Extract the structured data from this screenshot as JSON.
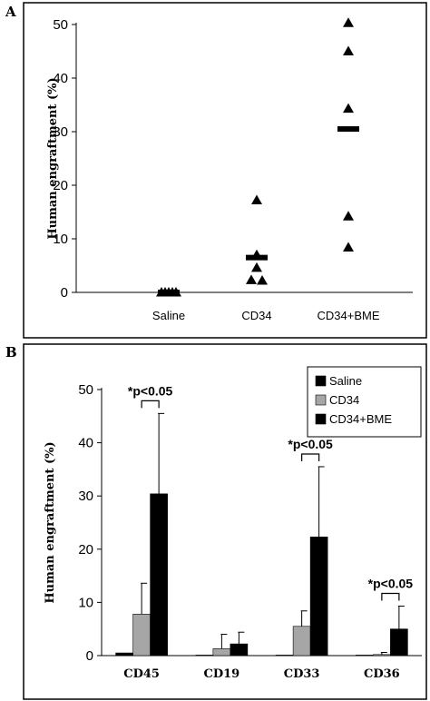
{
  "chart_data": [
    {
      "panel": "A",
      "type": "scatter",
      "ylabel": "Human engraftment (%)",
      "ylim": [
        0,
        50
      ],
      "yticks": [
        0,
        10,
        20,
        30,
        40,
        50
      ],
      "categories": [
        "Saline",
        "CD34",
        "CD34+BME"
      ],
      "points": [
        [
          0,
          0,
          0,
          0,
          0
        ],
        [
          17.2,
          7,
          4.6,
          2.3,
          2.2
        ],
        [
          50.3,
          45,
          34.3,
          14.2,
          8.4
        ]
      ],
      "medians": [
        0,
        6.5,
        30.5
      ],
      "colors": {
        "marker": "#000000"
      }
    },
    {
      "panel": "B",
      "type": "bar",
      "ylabel": "Human engraftment (%)",
      "ylim": [
        0,
        50
      ],
      "yticks": [
        0,
        10,
        20,
        30,
        40,
        50
      ],
      "categories": [
        "CD45",
        "CD19",
        "CD33",
        "CD36"
      ],
      "series": [
        {
          "name": "Saline",
          "values": [
            0.5,
            0.1,
            0.1,
            0.1
          ],
          "errors": [
            0,
            0,
            0,
            0
          ],
          "color": "#000000"
        },
        {
          "name": "CD34",
          "values": [
            7.8,
            1.3,
            5.5,
            0.2
          ],
          "errors": [
            5.8,
            2.7,
            2.9,
            0.4
          ],
          "color": "#a6a6a6"
        },
        {
          "name": "CD34+BME",
          "values": [
            30.4,
            2.2,
            22.3,
            5.0
          ],
          "errors": [
            15.1,
            2.2,
            13.2,
            4.3
          ],
          "color": "#000000"
        }
      ],
      "annotations": [
        {
          "text": "*p<0.05",
          "category": "CD45"
        },
        {
          "text": "*p<0.05",
          "category": "CD33"
        },
        {
          "text": "*p<0.05",
          "category": "CD36"
        }
      ],
      "legend_position": "top-right"
    }
  ]
}
